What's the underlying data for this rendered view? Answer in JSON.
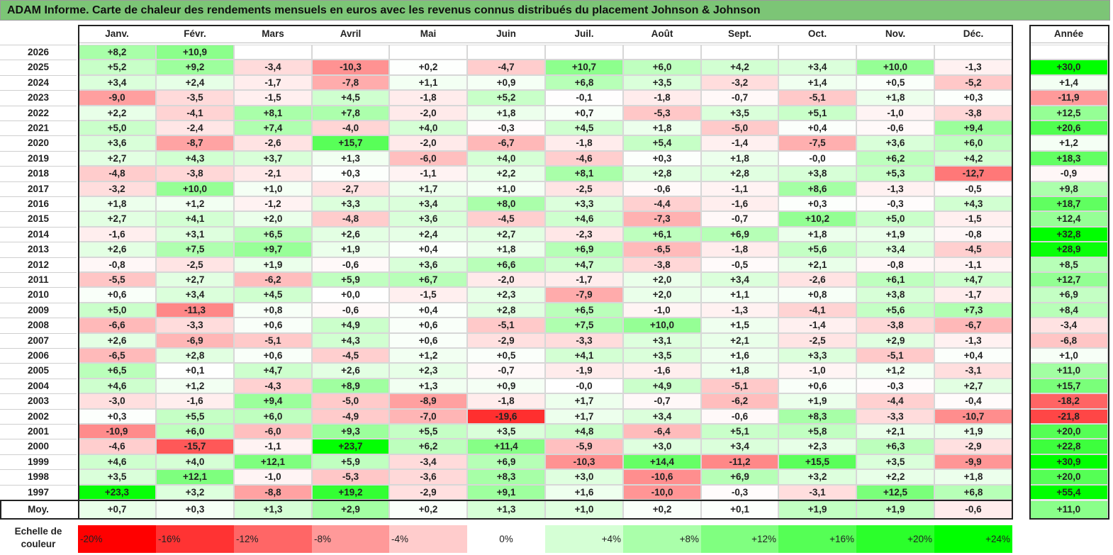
{
  "title": "ADAM Informe. Carte de chaleur des rendements mensuels en euros avec les revenus connus distribués du placement Johnson & Johnson",
  "chart_data": {
    "type": "heatmap",
    "months": [
      "Janv.",
      "Févr.",
      "Mars",
      "Avril",
      "Mai",
      "Juin",
      "Juil.",
      "Août",
      "Sept.",
      "Oct.",
      "Nov.",
      "Déc."
    ],
    "year_column_label": "Année",
    "average_row_label": "Moy.",
    "rows": [
      {
        "year": "2026",
        "values": [
          "+8,2",
          "+10,9",
          "",
          "",
          "",
          "",
          "",
          "",
          "",
          "",
          "",
          ""
        ],
        "annual": ""
      },
      {
        "year": "2025",
        "values": [
          "+5,2",
          "+9,2",
          "-3,4",
          "-10,3",
          "+0,2",
          "-4,7",
          "+10,7",
          "+6,0",
          "+4,2",
          "+3,4",
          "+10,0",
          "-1,3"
        ],
        "annual": "+30,0"
      },
      {
        "year": "2024",
        "values": [
          "+3,4",
          "+2,4",
          "-1,7",
          "-7,8",
          "+1,1",
          "+0,9",
          "+6,8",
          "+3,5",
          "-3,2",
          "+1,4",
          "+0,5",
          "-5,2"
        ],
        "annual": "+1,4"
      },
      {
        "year": "2023",
        "values": [
          "-9,0",
          "-3,5",
          "-1,5",
          "+4,5",
          "-1,8",
          "+5,2",
          "-0,1",
          "-1,8",
          "-0,7",
          "-5,1",
          "+1,8",
          "+0,3"
        ],
        "annual": "-11,9"
      },
      {
        "year": "2022",
        "values": [
          "+2,2",
          "-4,1",
          "+8,1",
          "+7,8",
          "-2,0",
          "+1,8",
          "+0,7",
          "-5,3",
          "+3,5",
          "+5,1",
          "-1,0",
          "-3,8"
        ],
        "annual": "+12,5"
      },
      {
        "year": "2021",
        "values": [
          "+5,0",
          "-2,4",
          "+7,4",
          "-4,0",
          "+4,0",
          "-0,3",
          "+4,5",
          "+1,8",
          "-5,0",
          "+0,4",
          "-0,6",
          "+9,4"
        ],
        "annual": "+20,6"
      },
      {
        "year": "2020",
        "values": [
          "+3,6",
          "-8,7",
          "-2,6",
          "+15,7",
          "-2,0",
          "-6,7",
          "-1,8",
          "+5,4",
          "-1,4",
          "-7,5",
          "+3,6",
          "+6,0"
        ],
        "annual": "+1,2"
      },
      {
        "year": "2019",
        "values": [
          "+2,7",
          "+4,3",
          "+3,7",
          "+1,3",
          "-6,0",
          "+4,0",
          "-4,6",
          "+0,3",
          "+1,8",
          "-0,0",
          "+6,2",
          "+4,2"
        ],
        "annual": "+18,3"
      },
      {
        "year": "2018",
        "values": [
          "-4,8",
          "-3,8",
          "-2,1",
          "+0,3",
          "-1,1",
          "+2,2",
          "+8,1",
          "+2,8",
          "+2,8",
          "+3,8",
          "+5,3",
          "-12,7"
        ],
        "annual": "-0,9"
      },
      {
        "year": "2017",
        "values": [
          "-3,2",
          "+10,0",
          "+1,0",
          "-2,7",
          "+1,7",
          "+1,0",
          "-2,5",
          "-0,6",
          "-1,1",
          "+8,6",
          "-1,3",
          "-0,5"
        ],
        "annual": "+9,8"
      },
      {
        "year": "2016",
        "values": [
          "+1,8",
          "+1,2",
          "-1,2",
          "+3,3",
          "+3,4",
          "+8,0",
          "+3,3",
          "-4,4",
          "-1,6",
          "+0,3",
          "-0,3",
          "+4,3"
        ],
        "annual": "+18,7"
      },
      {
        "year": "2015",
        "values": [
          "+2,7",
          "+4,1",
          "+2,0",
          "-4,8",
          "+3,6",
          "-4,5",
          "+4,6",
          "-7,3",
          "-0,7",
          "+10,2",
          "+5,0",
          "-1,5"
        ],
        "annual": "+12,4"
      },
      {
        "year": "2014",
        "values": [
          "-1,6",
          "+3,1",
          "+6,5",
          "+2,6",
          "+2,4",
          "+2,7",
          "-2,3",
          "+6,1",
          "+6,9",
          "+1,8",
          "+1,9",
          "-0,8"
        ],
        "annual": "+32,8"
      },
      {
        "year": "2013",
        "values": [
          "+2,6",
          "+7,5",
          "+9,7",
          "+1,9",
          "+0,4",
          "+1,8",
          "+6,9",
          "-6,5",
          "-1,8",
          "+5,6",
          "+3,4",
          "-4,5"
        ],
        "annual": "+28,9"
      },
      {
        "year": "2012",
        "values": [
          "-0,8",
          "-2,5",
          "+1,9",
          "-0,6",
          "+3,6",
          "+6,6",
          "+4,7",
          "-3,8",
          "-0,5",
          "+2,1",
          "-0,8",
          "-1,1"
        ],
        "annual": "+8,5"
      },
      {
        "year": "2011",
        "values": [
          "-5,5",
          "+2,7",
          "-6,2",
          "+5,9",
          "+6,7",
          "-2,0",
          "-1,7",
          "+2,0",
          "+3,4",
          "-2,6",
          "+6,1",
          "+4,7"
        ],
        "annual": "+12,7"
      },
      {
        "year": "2010",
        "values": [
          "+0,6",
          "+3,4",
          "+4,5",
          "+0,0",
          "-1,5",
          "+2,3",
          "-7,9",
          "+2,0",
          "+1,1",
          "+0,8",
          "+3,8",
          "-1,7"
        ],
        "annual": "+6,9"
      },
      {
        "year": "2009",
        "values": [
          "+5,0",
          "-11,3",
          "+0,8",
          "-0,6",
          "+0,4",
          "+2,8",
          "+6,5",
          "-1,0",
          "-1,3",
          "-4,1",
          "+5,6",
          "+7,3"
        ],
        "annual": "+8,4"
      },
      {
        "year": "2008",
        "values": [
          "-6,6",
          "-3,3",
          "+0,6",
          "+4,9",
          "+0,6",
          "-5,1",
          "+7,5",
          "+10,0",
          "+1,5",
          "-1,4",
          "-3,8",
          "-6,7"
        ],
        "annual": "-3,4"
      },
      {
        "year": "2007",
        "values": [
          "+2,6",
          "-6,9",
          "-5,1",
          "+4,3",
          "+0,6",
          "-2,9",
          "-3,3",
          "+3,1",
          "+2,1",
          "-2,5",
          "+2,9",
          "-1,3"
        ],
        "annual": "-6,8"
      },
      {
        "year": "2006",
        "values": [
          "-6,5",
          "+2,8",
          "+0,6",
          "-4,5",
          "+1,2",
          "+0,5",
          "+4,1",
          "+3,5",
          "+1,6",
          "+3,3",
          "-5,1",
          "+0,4"
        ],
        "annual": "+1,0"
      },
      {
        "year": "2005",
        "values": [
          "+6,5",
          "+0,1",
          "+4,7",
          "+2,6",
          "+2,3",
          "-0,7",
          "-1,9",
          "-1,6",
          "+1,8",
          "-1,0",
          "+1,2",
          "-3,1"
        ],
        "annual": "+11,0"
      },
      {
        "year": "2004",
        "values": [
          "+4,6",
          "+1,2",
          "-4,3",
          "+8,9",
          "+1,3",
          "+0,9",
          "-0,0",
          "+4,9",
          "-5,1",
          "+0,6",
          "-0,3",
          "+2,7"
        ],
        "annual": "+15,7"
      },
      {
        "year": "2003",
        "values": [
          "-3,0",
          "-1,6",
          "+9,4",
          "-5,0",
          "-8,9",
          "-1,8",
          "+1,7",
          "-0,7",
          "-6,2",
          "+1,9",
          "-4,4",
          "-0,4"
        ],
        "annual": "-18,2"
      },
      {
        "year": "2002",
        "values": [
          "+0,3",
          "+5,5",
          "+6,0",
          "-4,9",
          "-7,0",
          "-19,6",
          "+1,7",
          "+3,4",
          "-0,6",
          "+8,3",
          "-3,3",
          "-10,7"
        ],
        "annual": "-21,8"
      },
      {
        "year": "2001",
        "values": [
          "-10,9",
          "+6,0",
          "-6,0",
          "+9,3",
          "+5,5",
          "+3,5",
          "+4,8",
          "-6,4",
          "+5,1",
          "+5,8",
          "+2,1",
          "+1,9"
        ],
        "annual": "+20,0"
      },
      {
        "year": "2000",
        "values": [
          "-4,6",
          "-15,7",
          "-1,1",
          "+23,7",
          "+6,2",
          "+11,4",
          "-5,9",
          "+3,0",
          "+3,4",
          "+2,3",
          "+6,3",
          "-2,9"
        ],
        "annual": "+22,8"
      },
      {
        "year": "1999",
        "values": [
          "+4,6",
          "+4,0",
          "+12,1",
          "+5,9",
          "-3,4",
          "+6,9",
          "-10,3",
          "+14,4",
          "-11,2",
          "+15,5",
          "+3,5",
          "-9,9"
        ],
        "annual": "+30,9"
      },
      {
        "year": "1998",
        "values": [
          "+3,5",
          "+12,1",
          "-1,0",
          "-5,3",
          "-3,6",
          "+8,3",
          "+3,0",
          "-10,6",
          "+6,9",
          "+3,2",
          "+2,2",
          "+1,8"
        ],
        "annual": "+20,0"
      },
      {
        "year": "1997",
        "values": [
          "+23,3",
          "+3,2",
          "-8,8",
          "+19,2",
          "-2,9",
          "+9,1",
          "+1,6",
          "-10,0",
          "-0,3",
          "-3,1",
          "+12,5",
          "+6,8"
        ],
        "annual": "+55,4"
      }
    ],
    "average": {
      "values": [
        "+0,7",
        "+0,3",
        "+1,3",
        "+2,9",
        "+0,2",
        "+1,3",
        "+1,0",
        "+0,2",
        "+0,1",
        "+1,9",
        "+1,9",
        "-0,6"
      ],
      "annual": "+11,0"
    },
    "color_scale": {
      "label": "Echelle de couleur",
      "steps": [
        "-20%",
        "-16%",
        "-12%",
        "-8%",
        "-4%",
        "0%",
        "+4%",
        "+8%",
        "+12%",
        "+16%",
        "+20%",
        "+24%"
      ],
      "step_values": [
        -20,
        -16,
        -12,
        -8,
        -4,
        0,
        4,
        8,
        12,
        16,
        20,
        24
      ],
      "negative_color": "#ff0000",
      "positive_color": "#00ff00",
      "neutral_color": "#ffffff"
    }
  }
}
